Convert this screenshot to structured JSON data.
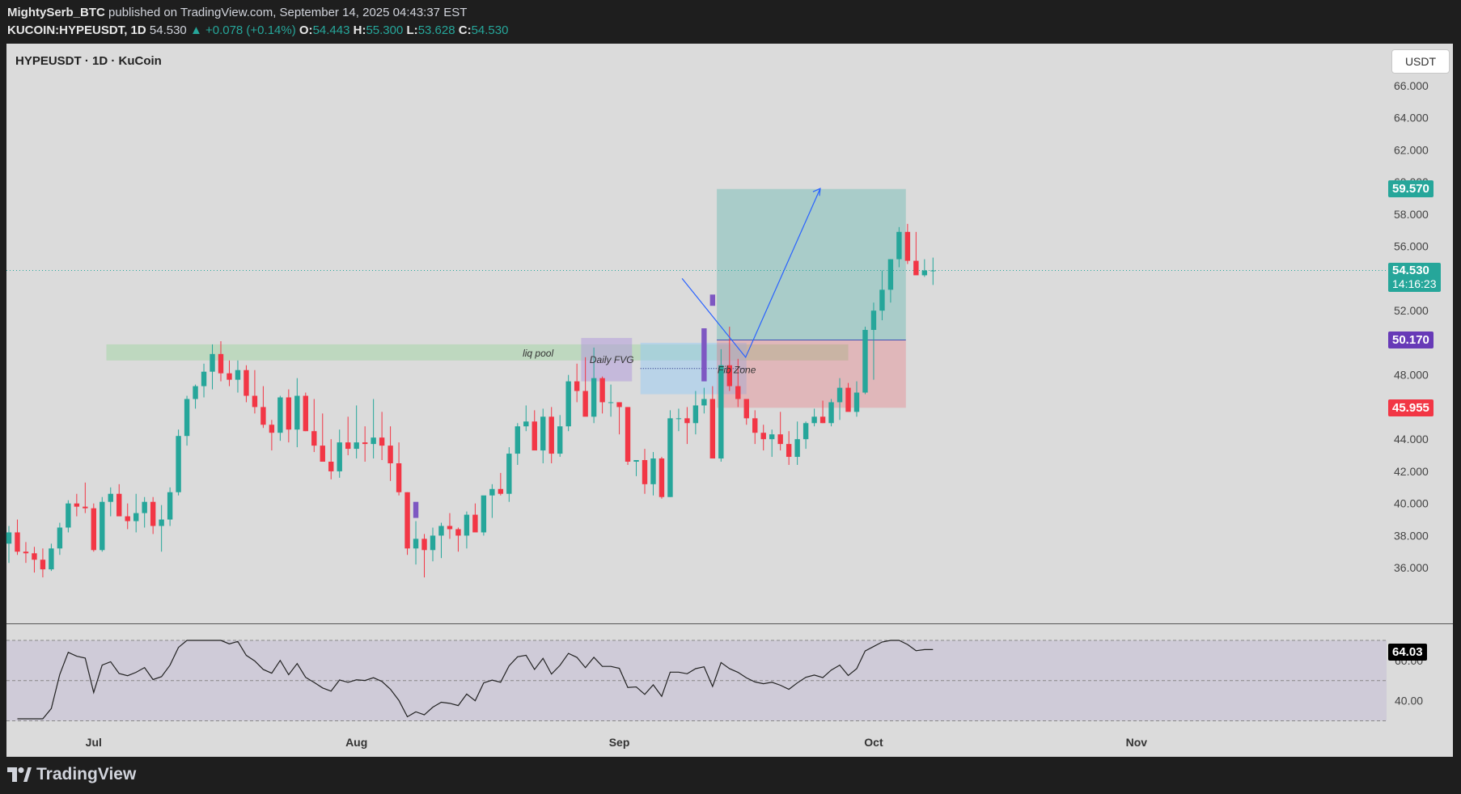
{
  "header": {
    "publisher": "MightySerb_BTC",
    "published_text": "published on TradingView.com, September 14, 2025 04:43:37 EST",
    "symbol_full": "KUCOIN:HYPEUSDT",
    "interval": "1D",
    "last": "54.530",
    "change": "▲ +0.078 (+0.14%)",
    "o_label": "O:",
    "o_value": "54.443",
    "h_label": "H:",
    "h_value": "55.300",
    "l_label": "L:",
    "l_value": "53.628",
    "c_label": "C:",
    "c_value": "54.530"
  },
  "legend": "HYPEUSDT · 1D · KuCoin",
  "currency_button": "USDT",
  "price_labels": {
    "target": "59.570",
    "current": "54.530",
    "countdown": "14:16:23",
    "entry": "50.170",
    "stop": "45.955",
    "rsi_value": "64.03"
  },
  "annotations": {
    "liq_pool": "liq pool",
    "daily_fvg": "Daily FVG",
    "fib_zone": "Fib Zone"
  },
  "brand": "TradingView",
  "colors": {
    "up": "#26a69a",
    "down": "#f23645",
    "target_label": "#26a69a",
    "entry_label": "#673ab7",
    "stop_label": "#f23645",
    "projection": "#2962ff"
  },
  "chart_data": {
    "type": "candlestick",
    "y_ticks": [
      "36.000",
      "38.000",
      "40.000",
      "42.000",
      "44.000",
      "46.000",
      "48.000",
      "50.000",
      "52.000",
      "54.000",
      "56.000",
      "58.000",
      "60.000",
      "62.000",
      "64.000",
      "66.000"
    ],
    "ylim": [
      34.7,
      66.4
    ],
    "x_ticks": [
      {
        "label": "Jul",
        "date": "2025-07-01"
      },
      {
        "label": "Aug",
        "date": "2025-08-01"
      },
      {
        "label": "Sep",
        "date": "2025-09-01"
      },
      {
        "label": "Oct",
        "date": "2025-10-01"
      },
      {
        "label": "Nov",
        "date": "2025-11-01"
      }
    ],
    "first_date": "2025-06-21",
    "candles": [
      [
        37.5,
        38.6,
        36.3,
        38.2
      ],
      [
        38.2,
        39.0,
        36.8,
        37.0
      ],
      [
        37.0,
        37.6,
        36.3,
        36.9
      ],
      [
        36.9,
        37.3,
        35.7,
        36.5
      ],
      [
        36.5,
        37.2,
        35.4,
        35.9
      ],
      [
        35.9,
        37.5,
        35.8,
        37.2
      ],
      [
        37.2,
        38.8,
        36.8,
        38.5
      ],
      [
        38.5,
        40.2,
        38.2,
        40.0
      ],
      [
        40.0,
        40.6,
        39.2,
        39.8
      ],
      [
        39.8,
        41.3,
        39.4,
        39.7
      ],
      [
        39.7,
        40.0,
        37.0,
        37.1
      ],
      [
        37.1,
        40.4,
        37.0,
        40.1
      ],
      [
        40.1,
        41.0,
        39.2,
        40.6
      ],
      [
        40.6,
        41.2,
        39.5,
        39.2
      ],
      [
        39.2,
        40.0,
        38.4,
        38.9
      ],
      [
        38.9,
        40.6,
        38.2,
        39.4
      ],
      [
        39.4,
        40.4,
        38.5,
        40.1
      ],
      [
        40.1,
        40.4,
        38.1,
        38.6
      ],
      [
        38.6,
        39.9,
        37.0,
        39.0
      ],
      [
        39.0,
        41.0,
        38.6,
        40.7
      ],
      [
        40.7,
        44.6,
        40.5,
        44.2
      ],
      [
        44.2,
        46.7,
        43.6,
        46.5
      ],
      [
        46.5,
        47.4,
        45.9,
        47.3
      ],
      [
        47.3,
        48.7,
        46.6,
        48.2
      ],
      [
        48.2,
        49.9,
        47.1,
        49.3
      ],
      [
        49.3,
        50.1,
        47.6,
        48.1
      ],
      [
        48.1,
        48.9,
        47.3,
        47.7
      ],
      [
        47.7,
        48.9,
        46.9,
        48.3
      ],
      [
        48.3,
        48.6,
        46.3,
        46.7
      ],
      [
        46.7,
        48.3,
        45.6,
        46.0
      ],
      [
        46.0,
        47.3,
        44.7,
        44.9
      ],
      [
        44.9,
        45.2,
        43.3,
        44.4
      ],
      [
        44.4,
        46.7,
        43.9,
        46.6
      ],
      [
        46.6,
        47.1,
        43.8,
        44.6
      ],
      [
        44.6,
        47.8,
        43.5,
        46.7
      ],
      [
        46.7,
        46.9,
        44.5,
        44.5
      ],
      [
        44.5,
        46.5,
        43.2,
        43.6
      ],
      [
        43.6,
        45.6,
        42.7,
        42.6
      ],
      [
        42.6,
        44.0,
        41.5,
        42.0
      ],
      [
        42.0,
        44.6,
        41.6,
        43.8
      ],
      [
        43.8,
        45.4,
        43.0,
        43.4
      ],
      [
        43.4,
        46.1,
        42.8,
        43.8
      ],
      [
        43.8,
        44.8,
        42.6,
        43.7
      ],
      [
        43.7,
        46.5,
        42.8,
        44.1
      ],
      [
        44.1,
        45.7,
        42.7,
        43.6
      ],
      [
        43.6,
        44.8,
        41.4,
        42.5
      ],
      [
        42.5,
        43.8,
        40.5,
        40.7
      ],
      [
        40.7,
        40.7,
        36.8,
        37.2
      ],
      [
        37.2,
        38.9,
        36.2,
        37.8
      ],
      [
        37.8,
        38.1,
        35.4,
        37.1
      ],
      [
        37.1,
        38.5,
        36.4,
        38.0
      ],
      [
        38.0,
        38.8,
        36.6,
        38.6
      ],
      [
        38.6,
        39.4,
        37.8,
        38.4
      ],
      [
        38.4,
        38.5,
        37.0,
        38.0
      ],
      [
        38.0,
        39.5,
        37.2,
        39.3
      ],
      [
        39.3,
        40.0,
        38.3,
        38.2
      ],
      [
        38.2,
        40.3,
        38.0,
        40.5
      ],
      [
        40.5,
        41.2,
        39.1,
        40.9
      ],
      [
        40.9,
        41.9,
        40.5,
        40.6
      ],
      [
        40.6,
        43.5,
        40.1,
        43.1
      ],
      [
        43.1,
        45.0,
        42.4,
        44.8
      ],
      [
        44.8,
        46.1,
        44.5,
        45.1
      ],
      [
        45.1,
        45.8,
        43.5,
        43.3
      ],
      [
        43.3,
        45.9,
        42.5,
        45.4
      ],
      [
        45.4,
        46.0,
        42.5,
        43.1
      ],
      [
        43.1,
        45.5,
        42.9,
        44.8
      ],
      [
        44.8,
        48.0,
        44.5,
        47.6
      ],
      [
        47.6,
        48.7,
        46.3,
        47.0
      ],
      [
        47.0,
        49.1,
        45.6,
        45.4
      ],
      [
        45.4,
        49.7,
        45.0,
        47.8
      ],
      [
        47.8,
        47.9,
        45.6,
        46.3
      ],
      [
        46.3,
        47.4,
        45.4,
        46.3
      ],
      [
        46.3,
        46.3,
        44.3,
        46.0
      ],
      [
        46.0,
        46.0,
        42.4,
        42.6
      ],
      [
        42.6,
        42.6,
        41.7,
        42.7
      ],
      [
        42.7,
        43.4,
        40.6,
        41.2
      ],
      [
        41.2,
        43.2,
        40.5,
        42.8
      ],
      [
        42.8,
        42.9,
        40.3,
        40.4
      ],
      [
        40.4,
        45.8,
        40.4,
        45.3
      ],
      [
        45.3,
        45.9,
        44.5,
        45.3
      ],
      [
        45.3,
        46.0,
        43.7,
        45.0
      ],
      [
        45.0,
        47.0,
        44.3,
        46.1
      ],
      [
        46.1,
        47.2,
        45.6,
        46.5
      ],
      [
        46.5,
        47.3,
        42.8,
        42.8
      ],
      [
        42.8,
        49.6,
        42.6,
        48.6
      ],
      [
        48.6,
        51.0,
        47.0,
        47.3
      ],
      [
        47.3,
        49.0,
        46.0,
        46.5
      ],
      [
        46.5,
        46.5,
        44.9,
        45.3
      ],
      [
        45.3,
        45.8,
        43.7,
        44.4
      ],
      [
        44.4,
        44.9,
        43.3,
        44.0
      ],
      [
        44.0,
        44.6,
        42.9,
        44.3
      ],
      [
        44.3,
        45.7,
        43.3,
        43.7
      ],
      [
        43.7,
        44.5,
        42.4,
        42.9
      ],
      [
        42.9,
        45.1,
        42.4,
        44.0
      ],
      [
        44.0,
        45.1,
        43.4,
        45.0
      ],
      [
        45.0,
        45.9,
        44.8,
        45.4
      ],
      [
        45.4,
        46.4,
        45.0,
        45.0
      ],
      [
        45.0,
        46.5,
        44.8,
        46.3
      ],
      [
        46.3,
        47.8,
        45.2,
        47.2
      ],
      [
        47.2,
        47.5,
        45.9,
        45.7
      ],
      [
        45.7,
        47.6,
        45.4,
        46.9
      ],
      [
        46.9,
        51.0,
        46.8,
        50.8
      ],
      [
        50.8,
        52.5,
        47.7,
        52.0
      ],
      [
        52.0,
        54.5,
        51.4,
        53.3
      ],
      [
        53.3,
        55.2,
        52.5,
        55.2
      ],
      [
        55.2,
        57.2,
        54.7,
        56.9
      ],
      [
        56.9,
        57.4,
        54.9,
        55.1
      ],
      [
        55.1,
        56.9,
        54.4,
        54.2
      ],
      [
        54.2,
        55.2,
        54.1,
        54.5
      ],
      [
        54.5,
        55.3,
        53.6,
        54.5
      ]
    ],
    "rsi": {
      "ylim": [
        31,
        70
      ],
      "tick_labels": [
        "40.00",
        "60.00"
      ],
      "levels": [
        30,
        50,
        70
      ],
      "last": 64.03
    },
    "annotations": {
      "liq_pool": [
        48.9,
        49.9
      ],
      "daily_fvg": [
        47.6,
        50.3
      ],
      "fib_zone": [
        46.8,
        50.0
      ],
      "fib_zone_mid": 48.4,
      "long_position": {
        "entry": 50.17,
        "target": 59.57,
        "stop": 45.955
      }
    }
  }
}
